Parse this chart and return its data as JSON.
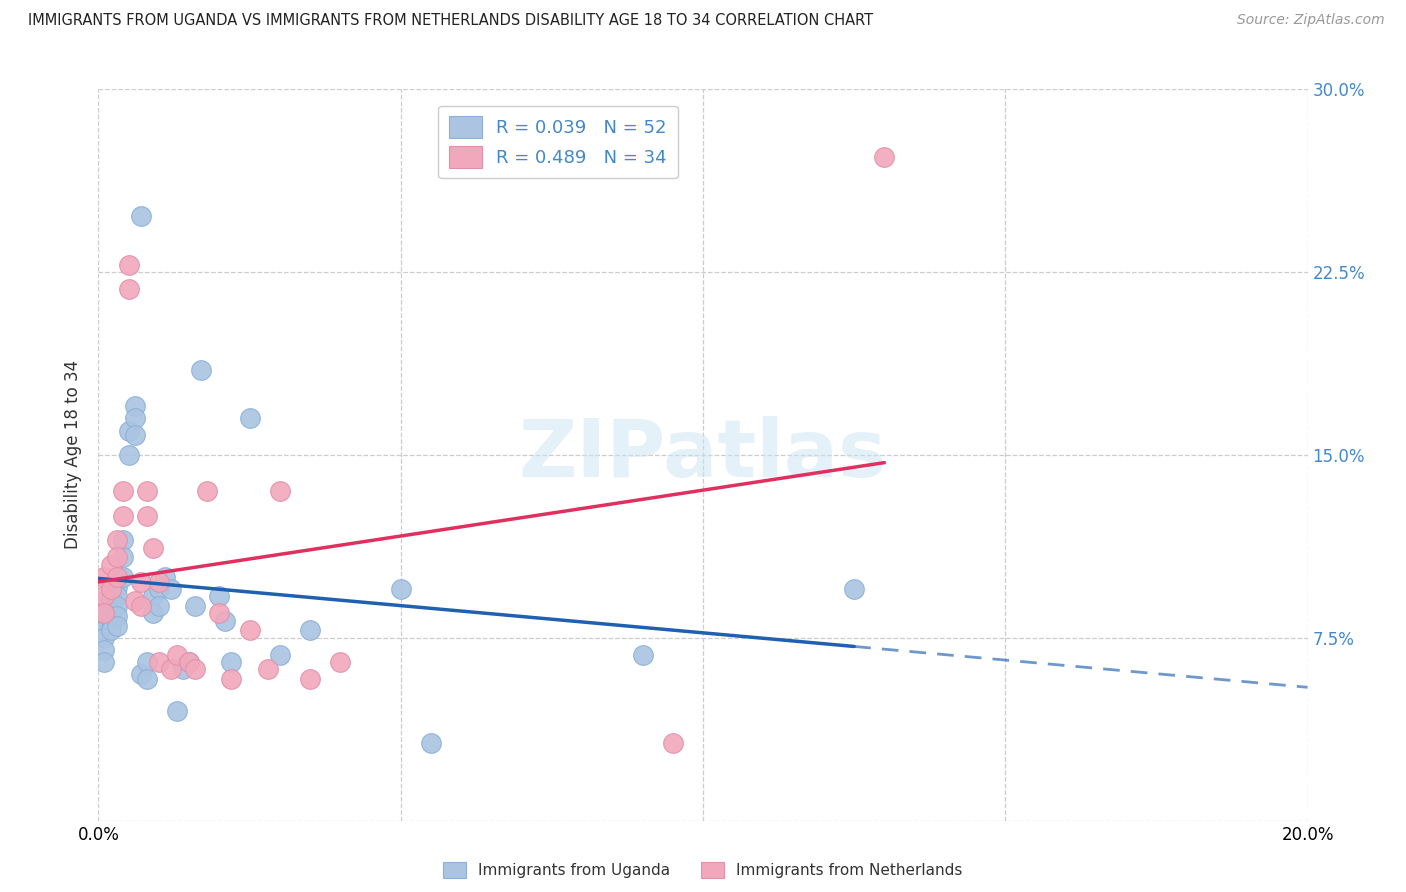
{
  "title": "IMMIGRANTS FROM UGANDA VS IMMIGRANTS FROM NETHERLANDS DISABILITY AGE 18 TO 34 CORRELATION CHART",
  "source": "Source: ZipAtlas.com",
  "ylabel": "Disability Age 18 to 34",
  "xlim": [
    0.0,
    0.2
  ],
  "ylim": [
    0.0,
    0.3
  ],
  "xticks": [
    0.0,
    0.05,
    0.1,
    0.15,
    0.2
  ],
  "yticks": [
    0.0,
    0.075,
    0.15,
    0.225,
    0.3
  ],
  "uganda_color": "#aac4e2",
  "netherlands_color": "#f2a8bc",
  "uganda_R": 0.039,
  "uganda_N": 52,
  "netherlands_R": 0.489,
  "netherlands_N": 34,
  "uganda_line_color": "#2060b0",
  "netherlands_line_color": "#e03060",
  "right_tick_color": "#4488cc",
  "uganda_x": [
    0.001,
    0.001,
    0.001,
    0.001,
    0.001,
    0.001,
    0.001,
    0.002,
    0.002,
    0.002,
    0.002,
    0.002,
    0.002,
    0.003,
    0.003,
    0.003,
    0.003,
    0.003,
    0.003,
    0.004,
    0.004,
    0.004,
    0.005,
    0.005,
    0.006,
    0.006,
    0.006,
    0.007,
    0.007,
    0.008,
    0.008,
    0.009,
    0.009,
    0.01,
    0.01,
    0.011,
    0.012,
    0.013,
    0.014,
    0.015,
    0.016,
    0.017,
    0.02,
    0.021,
    0.022,
    0.025,
    0.03,
    0.035,
    0.05,
    0.055,
    0.09,
    0.125
  ],
  "uganda_y": [
    0.09,
    0.085,
    0.082,
    0.078,
    0.075,
    0.07,
    0.065,
    0.096,
    0.093,
    0.09,
    0.086,
    0.082,
    0.078,
    0.1,
    0.096,
    0.092,
    0.088,
    0.084,
    0.08,
    0.115,
    0.108,
    0.1,
    0.16,
    0.15,
    0.17,
    0.165,
    0.158,
    0.248,
    0.06,
    0.065,
    0.058,
    0.092,
    0.085,
    0.095,
    0.088,
    0.1,
    0.095,
    0.045,
    0.062,
    0.065,
    0.088,
    0.185,
    0.092,
    0.082,
    0.065,
    0.165,
    0.068,
    0.078,
    0.095,
    0.032,
    0.068,
    0.095
  ],
  "netherlands_x": [
    0.001,
    0.001,
    0.001,
    0.002,
    0.002,
    0.003,
    0.003,
    0.003,
    0.004,
    0.004,
    0.005,
    0.005,
    0.006,
    0.007,
    0.007,
    0.008,
    0.008,
    0.009,
    0.01,
    0.01,
    0.012,
    0.013,
    0.015,
    0.016,
    0.018,
    0.02,
    0.022,
    0.025,
    0.028,
    0.03,
    0.035,
    0.04,
    0.095,
    0.13
  ],
  "netherlands_y": [
    0.1,
    0.092,
    0.085,
    0.105,
    0.095,
    0.115,
    0.108,
    0.1,
    0.135,
    0.125,
    0.228,
    0.218,
    0.09,
    0.098,
    0.088,
    0.135,
    0.125,
    0.112,
    0.098,
    0.065,
    0.062,
    0.068,
    0.065,
    0.062,
    0.135,
    0.085,
    0.058,
    0.078,
    0.062,
    0.135,
    0.058,
    0.065,
    0.032,
    0.272
  ]
}
